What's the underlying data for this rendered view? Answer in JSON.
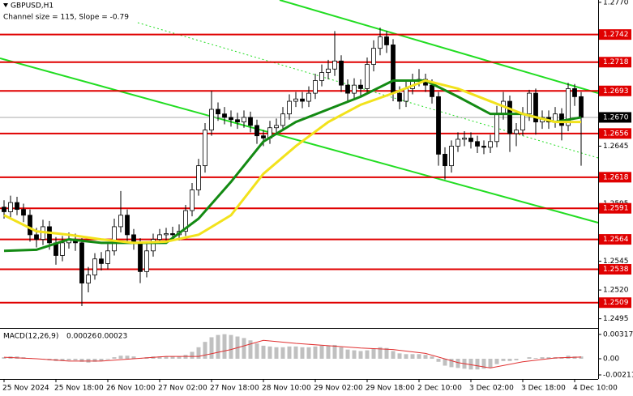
{
  "chart_data": [
    {
      "type": "candlestick",
      "title": "GBPUSD,H1",
      "annotation": "Channel size = 115, Slope = -0.79",
      "categories": [
        "25 Nov 2024",
        null,
        null,
        null,
        null,
        null,
        null,
        null,
        "25 Nov 18:00",
        null,
        null,
        null,
        null,
        null,
        null,
        null,
        "26 Nov 10:00",
        null,
        null,
        null,
        null,
        null,
        null,
        null,
        "27 Nov 02:00",
        null,
        null,
        null,
        null,
        null,
        null,
        null,
        "27 Nov 18:00",
        null,
        null,
        null,
        null,
        null,
        null,
        null,
        "28 Nov 10:00",
        null,
        null,
        null,
        null,
        null,
        null,
        null,
        "29 Nov 02:00",
        null,
        null,
        null,
        null,
        null,
        null,
        null,
        "29 Nov 18:00",
        null,
        null,
        null,
        null,
        null,
        null,
        null,
        "2 Dec 10:00",
        null,
        null,
        null,
        null,
        null,
        null,
        null,
        "3 Dec 02:00",
        null,
        null,
        null,
        null,
        null,
        null,
        null,
        "3 Dec 18:00",
        null,
        null,
        null,
        null,
        null,
        null,
        null,
        "4 Dec 10:00",
        null
      ],
      "open": [
        1.2592,
        1.2588,
        1.2596,
        1.259,
        1.2585,
        1.2568,
        1.2564,
        1.2575,
        1.2561,
        1.255,
        1.2561,
        1.2564,
        1.2561,
        1.2526,
        1.2533,
        1.2547,
        1.2543,
        1.2554,
        1.2575,
        1.2585,
        1.2568,
        1.2561,
        1.2536,
        1.2554,
        1.2564,
        1.2568,
        1.2569,
        1.2568,
        1.2571,
        1.2589,
        1.2607,
        1.2628,
        1.2659,
        1.2677,
        1.2673,
        1.267,
        1.2668,
        1.2666,
        1.267,
        1.2663,
        1.2654,
        1.2652,
        1.2661,
        1.2663,
        1.2673,
        1.2684,
        1.2686,
        1.2684,
        1.2691,
        1.2702,
        1.2709,
        1.2712,
        1.2719,
        1.2698,
        1.2691,
        1.2698,
        1.2695,
        1.2716,
        1.273,
        1.274,
        1.2733,
        1.2691,
        1.2684,
        1.2695,
        1.2702,
        1.2703,
        1.2698,
        1.2688,
        1.2638,
        1.2628,
        1.2645,
        1.2651,
        1.2652,
        1.2649,
        1.2645,
        1.2644,
        1.2649,
        1.2673,
        1.2684,
        1.2656,
        1.2659,
        1.2673,
        1.2691,
        1.2666,
        1.267,
        1.2666,
        1.2673,
        1.2663,
        1.2695,
        1.2688
      ],
      "high": [
        1.2598,
        1.2602,
        1.2601,
        1.2595,
        1.259,
        1.2574,
        1.2581,
        1.258,
        1.2566,
        1.2567,
        1.257,
        1.2569,
        1.2565,
        1.254,
        1.2552,
        1.2553,
        1.256,
        1.2582,
        1.2606,
        1.259,
        1.2573,
        1.2565,
        1.256,
        1.2569,
        1.2573,
        1.2574,
        1.2575,
        1.2577,
        1.2594,
        1.2613,
        1.2634,
        1.2665,
        1.2693,
        1.2683,
        1.2679,
        1.2676,
        1.2674,
        1.2676,
        1.2675,
        1.2668,
        1.2659,
        1.2667,
        1.2669,
        1.2679,
        1.269,
        1.2692,
        1.2692,
        1.2697,
        1.2708,
        1.2716,
        1.272,
        1.2745,
        1.2724,
        1.2703,
        1.2704,
        1.2703,
        1.2722,
        1.2737,
        1.2748,
        1.2745,
        1.2738,
        1.2697,
        1.2701,
        1.2708,
        1.2712,
        1.2708,
        1.2703,
        1.2692,
        1.2644,
        1.265,
        1.2657,
        1.2658,
        1.2657,
        1.2654,
        1.265,
        1.2655,
        1.268,
        1.2692,
        1.2689,
        1.2665,
        1.2679,
        1.2694,
        1.2695,
        1.2676,
        1.2676,
        1.2679,
        1.2678,
        1.27,
        1.2699,
        1.2692
      ],
      "low": [
        1.2582,
        1.2583,
        1.2585,
        1.2579,
        1.2562,
        1.2557,
        1.2559,
        1.2555,
        1.2542,
        1.2545,
        1.2556,
        1.2554,
        1.2506,
        1.2518,
        1.2529,
        1.2537,
        1.2538,
        1.255,
        1.257,
        1.2562,
        1.2555,
        1.2526,
        1.2531,
        1.2549,
        1.256,
        1.2563,
        1.2563,
        1.2563,
        1.2567,
        1.2584,
        1.2602,
        1.2622,
        1.2654,
        1.2667,
        1.2664,
        1.2662,
        1.266,
        1.2661,
        1.2657,
        1.2647,
        1.2645,
        1.2647,
        1.2656,
        1.2658,
        1.2668,
        1.2679,
        1.2678,
        1.2679,
        1.2686,
        1.2697,
        1.2703,
        1.2706,
        1.2692,
        1.2684,
        1.2686,
        1.2688,
        1.269,
        1.271,
        1.2724,
        1.2726,
        1.2684,
        1.2677,
        1.2679,
        1.269,
        1.2697,
        1.2692,
        1.2682,
        1.2628,
        1.2616,
        1.2622,
        1.264,
        1.2645,
        1.2643,
        1.2639,
        1.2638,
        1.2639,
        1.2644,
        1.2668,
        1.264,
        1.2645,
        1.2654,
        1.2667,
        1.2655,
        1.266,
        1.266,
        1.2661,
        1.265,
        1.2658,
        1.268,
        1.2628
      ],
      "close": [
        1.2588,
        1.2596,
        1.259,
        1.2585,
        1.2568,
        1.2564,
        1.2575,
        1.2561,
        1.255,
        1.2561,
        1.2564,
        1.2561,
        1.2526,
        1.2533,
        1.2547,
        1.2543,
        1.2554,
        1.2575,
        1.2585,
        1.2568,
        1.2561,
        1.2536,
        1.2554,
        1.2564,
        1.2568,
        1.2569,
        1.2568,
        1.2571,
        1.2589,
        1.2607,
        1.2628,
        1.2659,
        1.2677,
        1.2673,
        1.267,
        1.2668,
        1.2666,
        1.267,
        1.2663,
        1.2654,
        1.2652,
        1.2661,
        1.2663,
        1.2673,
        1.2684,
        1.2686,
        1.2684,
        1.2691,
        1.2702,
        1.2709,
        1.2712,
        1.2719,
        1.2698,
        1.2691,
        1.2698,
        1.2695,
        1.2716,
        1.273,
        1.274,
        1.2733,
        1.2691,
        1.2684,
        1.2695,
        1.2702,
        1.2703,
        1.2698,
        1.2688,
        1.2638,
        1.2628,
        1.2645,
        1.2651,
        1.2652,
        1.2649,
        1.2645,
        1.2644,
        1.2649,
        1.2673,
        1.2684,
        1.2656,
        1.2659,
        1.2673,
        1.2691,
        1.2666,
        1.267,
        1.2666,
        1.2673,
        1.2663,
        1.2695,
        1.2688,
        1.267
      ],
      "up_color": "#ffffff",
      "down_color": "#000000",
      "lines": [
        {
          "color": "#138a13",
          "x": [
            0,
            5,
            10,
            15,
            20,
            25,
            30,
            35,
            40,
            45,
            50,
            55,
            60,
            65,
            70,
            75,
            80,
            85,
            89
          ],
          "values": [
            1.2554,
            1.2555,
            1.2564,
            1.2561,
            1.2561,
            1.2561,
            1.2582,
            1.2614,
            1.2649,
            1.2666,
            1.2677,
            1.2688,
            1.2702,
            1.2702,
            1.2688,
            1.2673,
            1.2673,
            1.2666,
            1.267
          ]
        },
        {
          "color": "#f2e21c",
          "x": [
            0,
            5,
            10,
            15,
            20,
            25,
            30,
            35,
            40,
            45,
            50,
            55,
            60,
            65,
            70,
            75,
            80,
            85,
            89
          ],
          "values": [
            1.2585,
            1.2571,
            1.2568,
            1.2564,
            1.2561,
            1.2562,
            1.2568,
            1.2585,
            1.2621,
            1.2645,
            1.2666,
            1.2681,
            1.2691,
            1.2702,
            1.2695,
            1.2684,
            1.2673,
            1.2666,
            1.2666
          ]
        }
      ],
      "levels": [
        1.2742,
        1.2718,
        1.2693,
        1.2656,
        1.2618,
        1.2591,
        1.2564,
        1.2538,
        1.2509
      ],
      "level_color": "#e00000",
      "last_price": {
        "value": 1.267,
        "label": "1.2670"
      },
      "ylim": [
        1.2487,
        1.2772
      ],
      "yticks": [
        {
          "value": 1.277,
          "label": "1.2770"
        },
        1.2645,
        1.2595,
        1.2545,
        {
          "value": 1.252,
          "label": "1.2520"
        },
        1.2495
      ]
    },
    {
      "type": "macd",
      "title": "MACD(12,26,9)",
      "main_value": 0.00026,
      "signal_value": 0.00023,
      "histogram": [
        0.0002,
        0.0003,
        0.0003,
        0.0002,
        0.0001,
        0.0,
        -0.0001,
        -0.0002,
        -0.0003,
        -0.0003,
        -0.0002,
        -0.0002,
        -0.0004,
        -0.0005,
        -0.0004,
        -0.0003,
        -0.0001,
        0.0002,
        0.0004,
        0.0004,
        0.0003,
        0.0001,
        0.0002,
        0.0003,
        0.0003,
        0.0003,
        0.0003,
        0.0003,
        0.0005,
        0.0009,
        0.0015,
        0.0022,
        0.0028,
        0.0031,
        0.0032,
        0.0031,
        0.0029,
        0.0027,
        0.0024,
        0.002,
        0.0017,
        0.0016,
        0.0015,
        0.0015,
        0.0016,
        0.0016,
        0.0015,
        0.0015,
        0.0016,
        0.0017,
        0.0017,
        0.0018,
        0.0015,
        0.0012,
        0.0011,
        0.001,
        0.0011,
        0.0013,
        0.0015,
        0.0014,
        0.001,
        0.0007,
        0.0006,
        0.0006,
        0.0006,
        0.0005,
        0.0003,
        -0.0004,
        -0.0009,
        -0.0011,
        -0.0012,
        -0.0013,
        -0.0014,
        -0.0014,
        -0.0013,
        -0.0012,
        -0.0007,
        -0.0003,
        -0.0003,
        -0.0002,
        0.0,
        0.0002,
        0.0001,
        0.0002,
        0.0002,
        0.0002,
        0.0002,
        0.0004,
        0.0003,
        0.0003
      ],
      "hist_color": "#c0c0c0",
      "signal": {
        "color": "#e03030",
        "x": [
          0,
          5,
          10,
          15,
          20,
          25,
          30,
          35,
          40,
          45,
          50,
          55,
          60,
          65,
          70,
          75,
          80,
          85,
          89
        ],
        "values": [
          0.0002,
          0.0,
          -0.0003,
          -0.0003,
          0.0,
          0.0003,
          0.0003,
          0.0012,
          0.0024,
          0.002,
          0.0017,
          0.0014,
          0.0012,
          0.0007,
          -0.0005,
          -0.0012,
          -0.0004,
          0.0001,
          0.00023
        ]
      },
      "ylim": [
        -0.00264,
        0.0038
      ],
      "yticks": [
        0.00317,
        {
          "value": 0,
          "label": "0.00"
        },
        -0.00211
      ]
    }
  ]
}
